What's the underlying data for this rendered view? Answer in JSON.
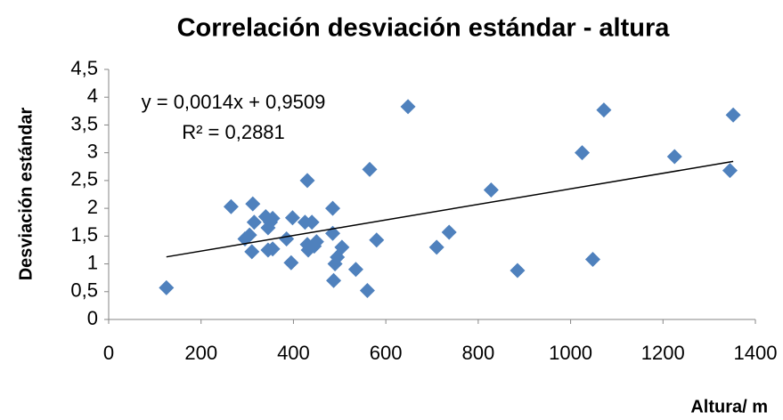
{
  "chart_data": {
    "type": "scatter",
    "title": "Correlación desviación estándar - altura",
    "x_label": "Altura/ m",
    "y_label": "Desviación estándar",
    "series": [
      {
        "color": "#4f81bd",
        "x": [
          125,
          265,
          295,
          305,
          310,
          312,
          315,
          340,
          345,
          345,
          350,
          355,
          355,
          385,
          395,
          398,
          425,
          430,
          430,
          432,
          440,
          445,
          450,
          485,
          485,
          487,
          490,
          495,
          505,
          535,
          560,
          565,
          580,
          648,
          710,
          737,
          828,
          885,
          1025,
          1048,
          1072,
          1225,
          1345,
          1352
        ],
        "values": [
          0.57,
          2.03,
          1.45,
          1.52,
          1.22,
          2.08,
          1.75,
          1.85,
          1.25,
          1.65,
          1.75,
          1.82,
          1.27,
          1.45,
          1.02,
          1.83,
          1.75,
          2.5,
          1.35,
          1.25,
          1.75,
          1.32,
          1.4,
          1.55,
          2.0,
          0.7,
          1.0,
          1.12,
          1.3,
          0.9,
          0.52,
          2.7,
          1.43,
          3.83,
          1.3,
          1.57,
          2.33,
          0.88,
          3.0,
          1.08,
          3.77,
          2.93,
          2.68,
          3.68
        ]
      }
    ],
    "trendline": {
      "label": "y = 0,0014x + 0,9509",
      "r2_label": "R² = 0,2881",
      "slope": 0.0014,
      "intercept": 0.9509,
      "x": [
        125,
        1352
      ]
    },
    "xlim": [
      0,
      1400
    ],
    "xticks": [
      0,
      200,
      400,
      600,
      800,
      1000,
      1200,
      1400
    ],
    "ylim": [
      0,
      4.5
    ],
    "yticks": [
      0,
      {
        "value": 0.5,
        "label": "0,5"
      },
      1,
      {
        "value": 1.5,
        "label": "1,5"
      },
      2,
      {
        "value": 2.5,
        "label": "2,5"
      },
      3,
      {
        "value": 3.5,
        "label": "3,5"
      },
      4,
      {
        "value": 4.5,
        "label": "4,5"
      }
    ],
    "grid": false
  }
}
